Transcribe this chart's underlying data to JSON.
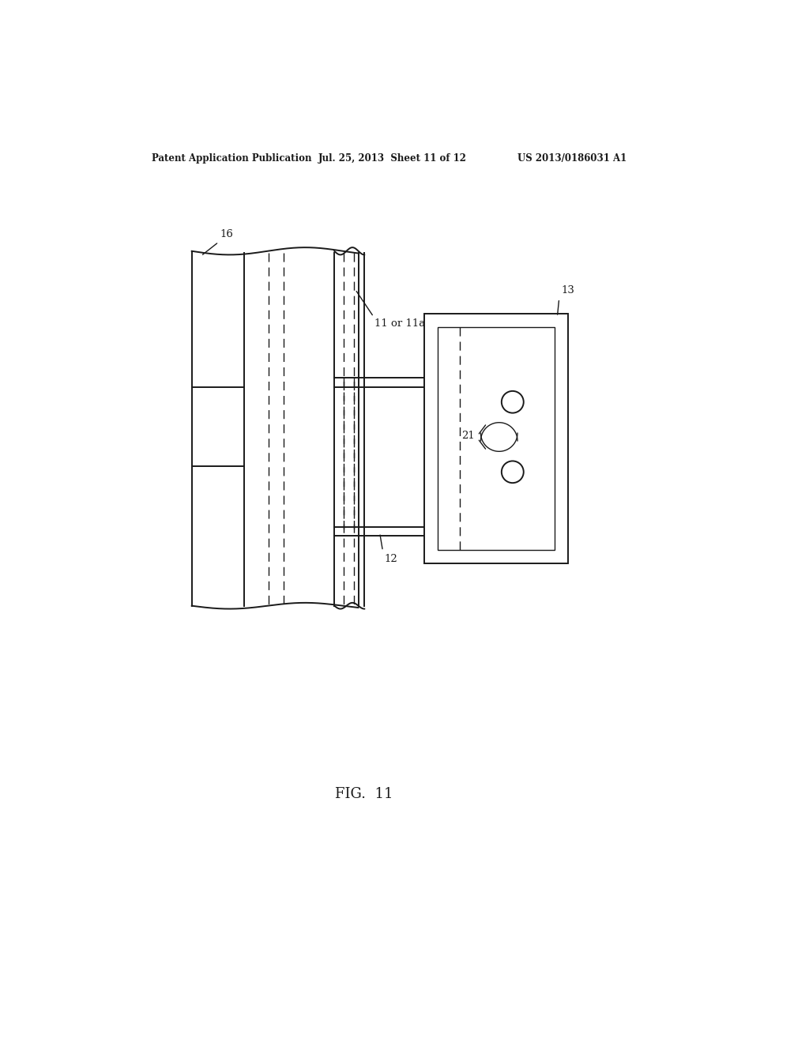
{
  "title_left": "Patent Application Publication",
  "title_mid": "Jul. 25, 2013  Sheet 11 of 12",
  "title_right": "US 2013/0186031 A1",
  "fig_label": "FIG.  11",
  "bg_color": "#ffffff",
  "line_color": "#1a1a1a",
  "label_16": "16",
  "label_11": "11 or 11a",
  "label_13": "13",
  "label_12": "12",
  "label_21": "21"
}
